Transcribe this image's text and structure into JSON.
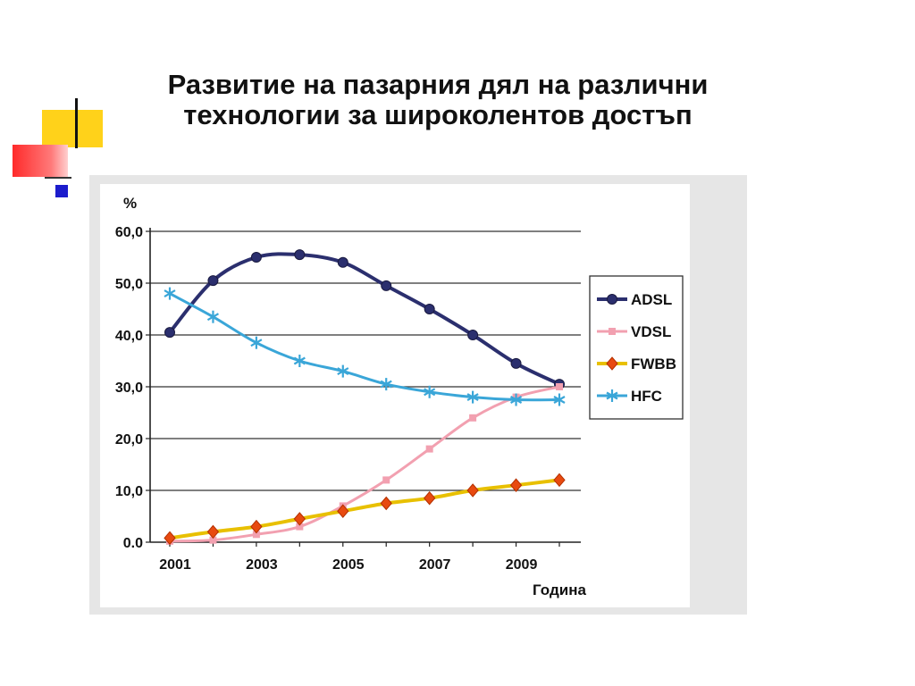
{
  "slide": {
    "title_line1": "Развитие на пазарния дял на различни",
    "title_line2": "технологии за широколентов достъп"
  },
  "chart_data": {
    "type": "line",
    "ylabel": "%",
    "xlabel": "Година",
    "x": [
      2001,
      2002,
      2003,
      2004,
      2005,
      2006,
      2007,
      2008,
      2009,
      2010
    ],
    "xticks": [
      "2001",
      "2003",
      "2005",
      "2007",
      "2009"
    ],
    "yticks": [
      "0.0",
      "10,0",
      "20,0",
      "30,0",
      "40,0",
      "50,0",
      "60,0"
    ],
    "xlim": [
      2001,
      2010
    ],
    "ylim": [
      0,
      60
    ],
    "grid": "horizontal",
    "legend_position": "right",
    "series": [
      {
        "name": "ADSL",
        "color": "#2b2f6e",
        "marker": "dot",
        "values": [
          40.5,
          50.5,
          55.0,
          55.5,
          54.0,
          49.5,
          45.0,
          40.0,
          34.5,
          30.5
        ]
      },
      {
        "name": "VDSL",
        "color": "#f2a0b0",
        "marker": "square",
        "values": [
          0.2,
          0.4,
          1.5,
          3.0,
          7.0,
          12.0,
          18.0,
          24.0,
          28.0,
          30.0
        ]
      },
      {
        "name": "FWBB",
        "color": "#e8c000",
        "marker": "diamond",
        "values": [
          0.8,
          2.0,
          3.0,
          4.5,
          6.0,
          7.5,
          8.5,
          10.0,
          11.0,
          12.0
        ]
      },
      {
        "name": "HFC",
        "color": "#3aa6d8",
        "marker": "star",
        "values": [
          48.0,
          43.5,
          38.5,
          35.0,
          33.0,
          30.5,
          29.0,
          28.0,
          27.5,
          27.5
        ]
      }
    ]
  }
}
